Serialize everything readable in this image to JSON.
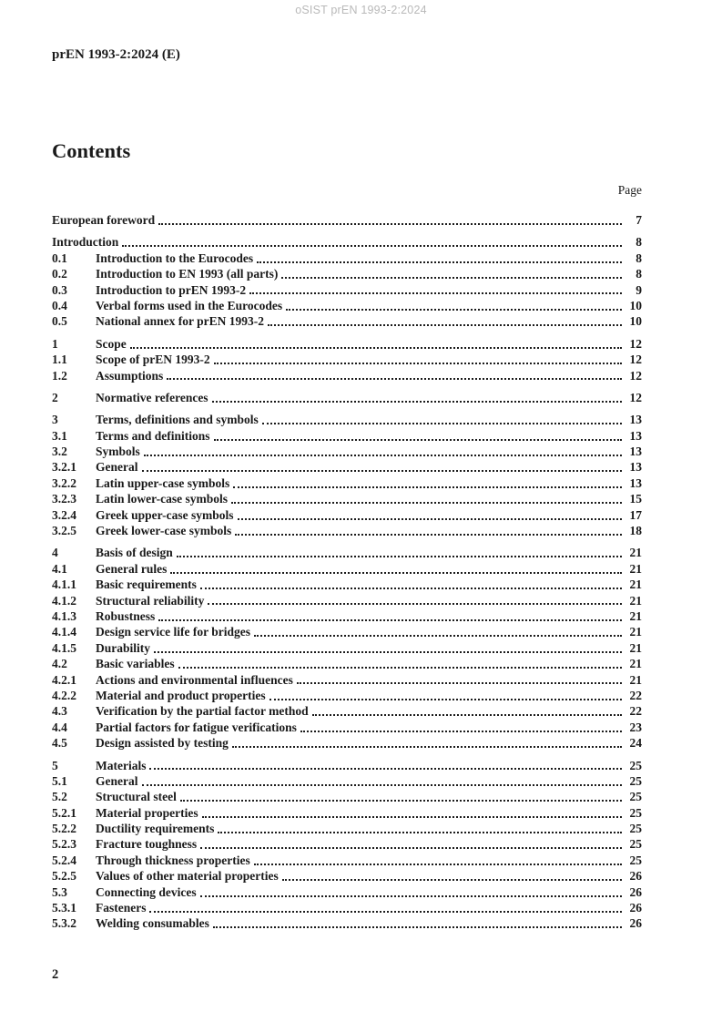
{
  "watermark": "oSIST prEN 1993-2:2024",
  "header": {
    "doc_code": "prEN 1993-2:2024 (E)"
  },
  "contents": {
    "title": "Contents",
    "page_label": "Page",
    "groups": [
      {
        "entries": [
          {
            "num": "",
            "title": "European foreword",
            "page": "7"
          }
        ]
      },
      {
        "entries": [
          {
            "num": "",
            "title": "Introduction",
            "page": "8"
          },
          {
            "num": "0.1",
            "title": "Introduction to the Eurocodes",
            "page": "8"
          },
          {
            "num": "0.2",
            "title": "Introduction to EN 1993 (all parts)",
            "page": "8"
          },
          {
            "num": "0.3",
            "title": "Introduction to prEN 1993-2",
            "page": "9"
          },
          {
            "num": "0.4",
            "title": "Verbal forms used in the Eurocodes",
            "page": "10"
          },
          {
            "num": "0.5",
            "title": "National annex for prEN 1993-2",
            "page": "10"
          }
        ]
      },
      {
        "entries": [
          {
            "num": "1",
            "title": "Scope",
            "page": "12"
          },
          {
            "num": "1.1",
            "title": "Scope of prEN 1993-2",
            "page": "12"
          },
          {
            "num": "1.2",
            "title": "Assumptions",
            "page": "12"
          }
        ]
      },
      {
        "entries": [
          {
            "num": "2",
            "title": "Normative references",
            "page": "12"
          }
        ]
      },
      {
        "entries": [
          {
            "num": "3",
            "title": "Terms, definitions and symbols",
            "page": "13"
          },
          {
            "num": "3.1",
            "title": "Terms and definitions",
            "page": "13"
          },
          {
            "num": "3.2",
            "title": "Symbols",
            "page": "13"
          },
          {
            "num": "3.2.1",
            "title": "General",
            "page": "13"
          },
          {
            "num": "3.2.2",
            "title": "Latin upper-case symbols",
            "page": "13"
          },
          {
            "num": "3.2.3",
            "title": "Latin lower-case symbols",
            "page": "15"
          },
          {
            "num": "3.2.4",
            "title": "Greek upper-case symbols",
            "page": "17"
          },
          {
            "num": "3.2.5",
            "title": "Greek lower-case symbols",
            "page": "18"
          }
        ]
      },
      {
        "entries": [
          {
            "num": "4",
            "title": "Basis of design",
            "page": "21"
          },
          {
            "num": "4.1",
            "title": "General rules",
            "page": "21"
          },
          {
            "num": "4.1.1",
            "title": "Basic requirements",
            "page": "21"
          },
          {
            "num": "4.1.2",
            "title": "Structural reliability",
            "page": "21"
          },
          {
            "num": "4.1.3",
            "title": "Robustness",
            "page": "21"
          },
          {
            "num": "4.1.4",
            "title": "Design service life for bridges",
            "page": "21"
          },
          {
            "num": "4.1.5",
            "title": "Durability",
            "page": "21"
          },
          {
            "num": "4.2",
            "title": "Basic variables",
            "page": "21"
          },
          {
            "num": "4.2.1",
            "title": "Actions and environmental influences",
            "page": "21"
          },
          {
            "num": "4.2.2",
            "title": "Material and product properties",
            "page": "22"
          },
          {
            "num": "4.3",
            "title": "Verification by the partial factor method",
            "page": "22"
          },
          {
            "num": "4.4",
            "title": "Partial factors for fatigue verifications",
            "page": "23"
          },
          {
            "num": "4.5",
            "title": "Design assisted by testing",
            "page": "24"
          }
        ]
      },
      {
        "entries": [
          {
            "num": "5",
            "title": "Materials",
            "page": "25"
          },
          {
            "num": "5.1",
            "title": "General",
            "page": "25"
          },
          {
            "num": "5.2",
            "title": "Structural steel",
            "page": "25"
          },
          {
            "num": "5.2.1",
            "title": "Material properties",
            "page": "25"
          },
          {
            "num": "5.2.2",
            "title": "Ductility requirements",
            "page": "25"
          },
          {
            "num": "5.2.3",
            "title": "Fracture toughness",
            "page": "25"
          },
          {
            "num": "5.2.4",
            "title": "Through thickness properties",
            "page": "25"
          },
          {
            "num": "5.2.5",
            "title": "Values of other material properties",
            "page": "26"
          },
          {
            "num": "5.3",
            "title": "Connecting devices",
            "page": "26"
          },
          {
            "num": "5.3.1",
            "title": "Fasteners",
            "page": "26"
          },
          {
            "num": "5.3.2",
            "title": "Welding consumables",
            "page": "26"
          }
        ]
      }
    ]
  },
  "footer": {
    "page_number": "2"
  },
  "colors": {
    "text": "#1a1a1a",
    "watermark": "#b9b9b9",
    "background": "#ffffff"
  }
}
